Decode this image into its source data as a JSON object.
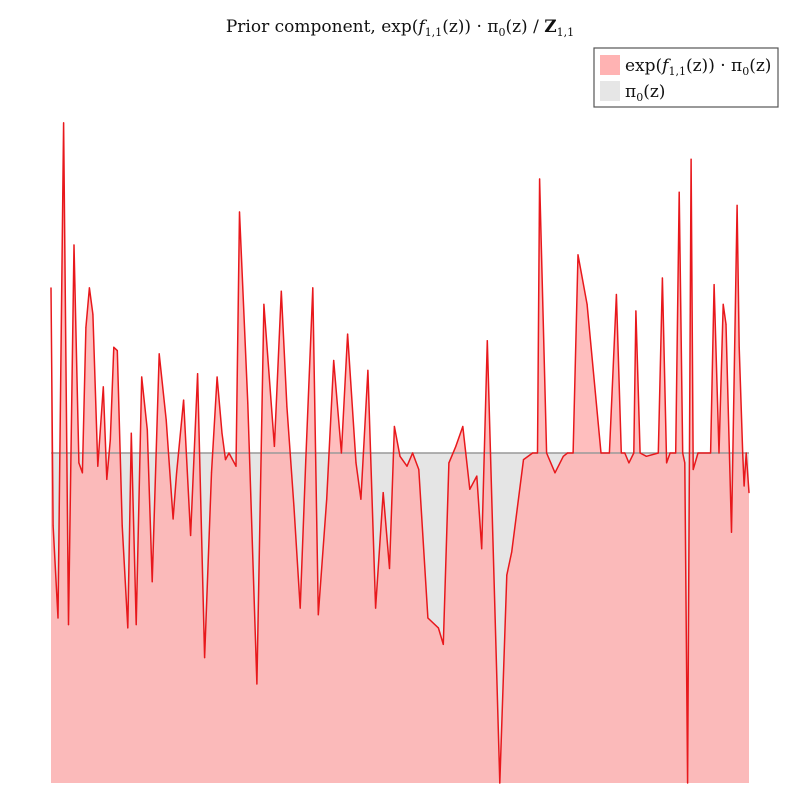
{
  "chart_data": {
    "type": "area",
    "title": {
      "prefix": "Prior component, exp(",
      "f": "f",
      "f_sub": "1,1",
      "mid": "(z)) · π",
      "pi_sub": "0",
      "mid2": "(z) / ",
      "Z": "Z",
      "Z_sub": "1,1"
    },
    "legend": {
      "placement": "top-right",
      "entries": [
        {
          "key": "posterior",
          "color": "#ffb3b3",
          "label": {
            "a": "exp(",
            "f": "f",
            "f_sub": "1,1",
            "b": "(z)) · π",
            "pi_sub": "0",
            "c": "(z)"
          }
        },
        {
          "key": "prior",
          "color": "#e6e6e6",
          "label": {
            "a": "π",
            "pi_sub": "0",
            "b": "(z)"
          }
        }
      ]
    },
    "colors": {
      "line": "#e8181c",
      "fill": "#ffb3b3",
      "prior_fill": "#e5e5e5",
      "prior_line": "#999999"
    },
    "axes_visible": false,
    "xlim": [
      0,
      1
    ],
    "ylim": [
      0,
      2.13
    ],
    "prior_level": 1.0,
    "series": [
      {
        "x": [
          0,
          0.003,
          0.01,
          0.018,
          0.025,
          0.033,
          0.04,
          0.045,
          0.05,
          0.055,
          0.06,
          0.067,
          0.075,
          0.08,
          0.085,
          0.09,
          0.095,
          0.102,
          0.11,
          0.115,
          0.122,
          0.13,
          0.138,
          0.145,
          0.155,
          0.165,
          0.175,
          0.18,
          0.19,
          0.2,
          0.21,
          0.22,
          0.23,
          0.238,
          0.245,
          0.25,
          0.255,
          0.265,
          0.27,
          0.282,
          0.295,
          0.305,
          0.32,
          0.33,
          0.338,
          0.348,
          0.357,
          0.365,
          0.375,
          0.383,
          0.395,
          0.405,
          0.416,
          0.425,
          0.437,
          0.444,
          0.454,
          0.465,
          0.476,
          0.485,
          0.492,
          0.5,
          0.51,
          0.518,
          0.527,
          0.54,
          0.555,
          0.562,
          0.57,
          0.58,
          0.59,
          0.6,
          0.61,
          0.617,
          0.625,
          0.643,
          0.653,
          0.66,
          0.677,
          0.69,
          0.697,
          0.7,
          0.71,
          0.722,
          0.734,
          0.74,
          0.748,
          0.755,
          0.768,
          0.788,
          0.8,
          0.81,
          0.817,
          0.822,
          0.828,
          0.835,
          0.838,
          0.844,
          0.853,
          0.87,
          0.876,
          0.882,
          0.887,
          0.891,
          0.895,
          0.9,
          0.905,
          0.908,
          0.912,
          0.917,
          0.92,
          0.927,
          0.945,
          0.95,
          0.957,
          0.963,
          0.967,
          0.975,
          0.983,
          0.986,
          0.991,
          0.993,
          0.996,
          1.0
        ],
        "y": [
          1.5,
          0.78,
          0.5,
          2.0,
          0.48,
          1.63,
          0.97,
          0.94,
          1.38,
          1.5,
          1.42,
          0.96,
          1.2,
          0.92,
          1.04,
          1.32,
          1.31,
          0.78,
          0.47,
          1.06,
          0.48,
          1.23,
          1.07,
          0.61,
          1.3,
          1.1,
          0.8,
          0.94,
          1.16,
          0.75,
          1.24,
          0.38,
          0.94,
          1.23,
          1.06,
          0.98,
          1.0,
          0.96,
          1.73,
          1.15,
          0.3,
          1.45,
          1.02,
          1.49,
          1.14,
          0.84,
          0.53,
          0.98,
          1.5,
          0.51,
          0.86,
          1.28,
          1.0,
          1.36,
          0.97,
          0.86,
          1.25,
          0.53,
          0.88,
          0.65,
          1.08,
          0.99,
          0.96,
          1.0,
          0.95,
          0.5,
          0.47,
          0.42,
          0.97,
          1.02,
          1.08,
          0.89,
          0.93,
          0.71,
          1.34,
          0.0,
          0.63,
          0.7,
          0.98,
          1.0,
          1.0,
          1.83,
          1.0,
          0.94,
          0.99,
          1.0,
          1.0,
          1.6,
          1.45,
          1.0,
          1.0,
          1.48,
          1.0,
          1.0,
          0.97,
          1.0,
          1.43,
          1.0,
          0.99,
          1.0,
          1.53,
          0.97,
          1.0,
          1.0,
          1.0,
          1.79,
          1.0,
          0.97,
          0.0,
          1.89,
          0.95,
          1.0,
          1.0,
          1.51,
          1.0,
          1.45,
          1.39,
          0.76,
          1.75,
          1.32,
          1.0,
          0.9,
          1.0,
          0.88
        ]
      }
    ]
  }
}
